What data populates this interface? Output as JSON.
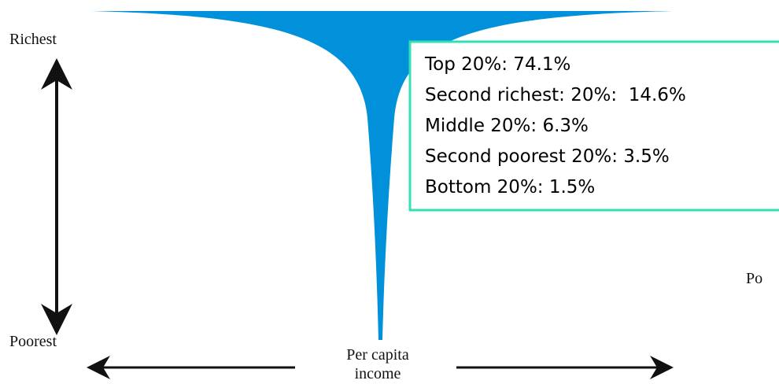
{
  "labels": {
    "top": "Richest",
    "bottom": "Poorest",
    "x_axis": [
      "Per capita",
      "income"
    ],
    "cut_off": "Po"
  },
  "legend": {
    "lines": [
      "Top 20%: 74.1%",
      "Second richest: 20%:  14.6%",
      "Middle 20%: 6.3%",
      "Second poorest 20%: 3.5%",
      "Bottom 20%: 1.5%"
    ]
  }
}
